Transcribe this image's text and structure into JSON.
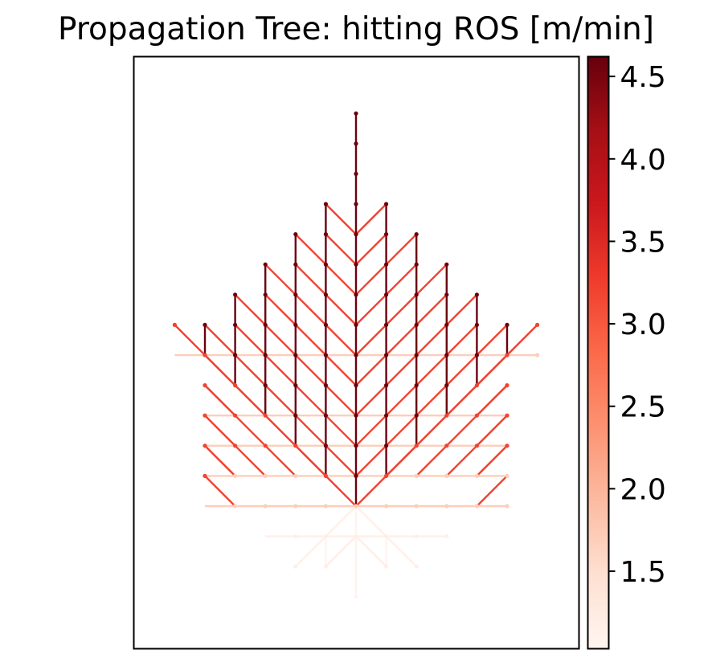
{
  "chart_data": {
    "type": "tree",
    "title": "Propagation Tree: hitting ROS [m/min]",
    "xlabel": "",
    "ylabel": "",
    "grid": false,
    "axes_ticks": false,
    "colormap": "Reds",
    "colorbar": {
      "label": "",
      "min": 1.03,
      "max": 4.62,
      "ticks": [
        1.5,
        2.0,
        2.5,
        3.0,
        3.5,
        4.0,
        4.5
      ],
      "tick_labels": [
        "1.5",
        "2.0",
        "2.5",
        "3.0",
        "3.5",
        "4.0",
        "4.5"
      ]
    },
    "origin": [
      0,
      0
    ],
    "ros_levels": {
      "north": 4.6,
      "diagonal_north": 3.2,
      "east_west": 1.7,
      "diagonal_south": 1.15,
      "south": 1.05
    },
    "nodes_note": "tree edges connect grid cells; x, y in grid cell units from ignition point",
    "edges": [
      {
        "from": [
          0,
          0
        ],
        "to": [
          0,
          13
        ]
      },
      {
        "from": [
          0,
          0
        ],
        "to": [
          1,
          1
        ]
      },
      {
        "from": [
          1,
          1
        ],
        "to": [
          1,
          10
        ]
      },
      {
        "from": [
          0,
          0
        ],
        "to": [
          -1,
          1
        ]
      },
      {
        "from": [
          -1,
          1
        ],
        "to": [
          -1,
          10
        ]
      },
      {
        "from": [
          1,
          1
        ],
        "to": [
          2,
          2
        ]
      },
      {
        "from": [
          2,
          2
        ],
        "to": [
          2,
          9
        ]
      },
      {
        "from": [
          -1,
          1
        ],
        "to": [
          -2,
          2
        ]
      },
      {
        "from": [
          -2,
          2
        ],
        "to": [
          -2,
          9
        ]
      },
      {
        "from": [
          2,
          2
        ],
        "to": [
          3,
          3
        ]
      },
      {
        "from": [
          3,
          3
        ],
        "to": [
          3,
          8
        ]
      },
      {
        "from": [
          -2,
          2
        ],
        "to": [
          -3,
          3
        ]
      },
      {
        "from": [
          -3,
          3
        ],
        "to": [
          -3,
          8
        ]
      },
      {
        "from": [
          3,
          3
        ],
        "to": [
          4,
          4
        ]
      },
      {
        "from": [
          4,
          4
        ],
        "to": [
          4,
          7
        ]
      },
      {
        "from": [
          -3,
          3
        ],
        "to": [
          -4,
          4
        ]
      },
      {
        "from": [
          -4,
          4
        ],
        "to": [
          -4,
          7
        ]
      },
      {
        "from": [
          4,
          4
        ],
        "to": [
          5,
          5
        ]
      },
      {
        "from": [
          5,
          5
        ],
        "to": [
          5,
          6
        ]
      },
      {
        "from": [
          -4,
          4
        ],
        "to": [
          -5,
          5
        ]
      },
      {
        "from": [
          -5,
          5
        ],
        "to": [
          -5,
          6
        ]
      }
    ]
  }
}
